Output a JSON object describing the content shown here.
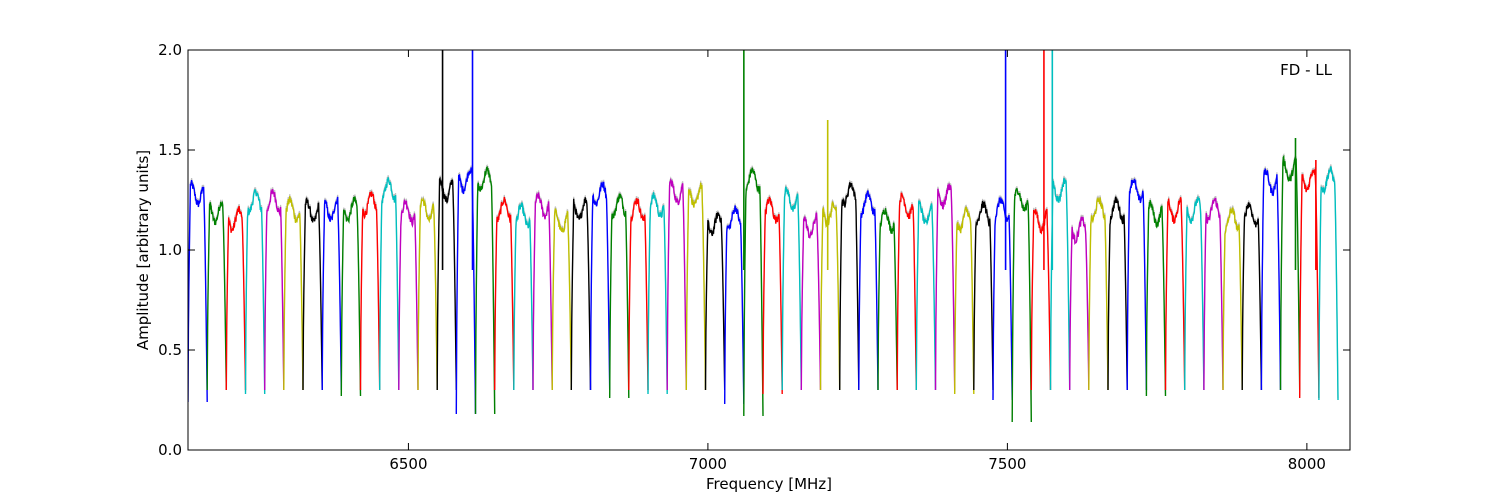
{
  "chart_data": {
    "type": "line",
    "annotation": "FD - LL",
    "xlabel": "Frequency [MHz]",
    "ylabel": "Amplitude [arbitrary units]",
    "xlim": [
      6132,
      8072
    ],
    "ylim": [
      0.0,
      2.0
    ],
    "x_ticks": [
      6500,
      7000,
      7500,
      8000
    ],
    "y_ticks": [
      0.0,
      0.5,
      1.0,
      1.5,
      2.0
    ],
    "x_tick_labels": [
      "6500",
      "7000",
      "7500",
      "8000"
    ],
    "y_tick_labels": [
      "0.0",
      "0.5",
      "1.0",
      "1.5",
      "2.0"
    ],
    "grid": false,
    "colors": [
      "#0000ff",
      "#008000",
      "#ff0000",
      "#00bfbf",
      "#bf00bf",
      "#bfbf00",
      "#000000"
    ],
    "background_color": "#c0c0c0",
    "channel_start_mhz": 6132,
    "channel_width_mhz": 32,
    "channel_count": 60,
    "channel_levels": [
      1.28,
      1.19,
      1.15,
      1.24,
      1.24,
      1.2,
      1.19,
      1.2,
      1.2,
      1.23,
      1.3,
      1.19,
      1.2,
      1.3,
      1.35,
      1.35,
      1.2,
      1.17,
      1.22,
      1.14,
      1.2,
      1.28,
      1.22,
      1.2,
      1.22,
      1.29,
      1.27,
      1.13,
      1.16,
      1.35,
      1.2,
      1.25,
      1.12,
      1.18,
      1.28,
      1.23,
      1.15,
      1.22,
      1.18,
      1.27,
      1.15,
      1.18,
      1.2,
      1.25,
      1.15,
      1.3,
      1.1,
      1.2,
      1.2,
      1.3,
      1.18,
      1.2,
      1.2,
      1.2,
      1.15,
      1.18,
      1.34,
      1.4,
      1.35,
      1.35
    ],
    "channel_minima": [
      0.24,
      0.3,
      0.3,
      0.28,
      0.3,
      0.3,
      0.3,
      0.3,
      0.27,
      0.3,
      0.3,
      0.3,
      0.3,
      0.3,
      0.18,
      0.18,
      0.3,
      0.3,
      0.3,
      0.3,
      0.3,
      0.3,
      0.26,
      0.3,
      0.28,
      0.3,
      0.3,
      0.3,
      0.23,
      0.17,
      0.28,
      0.3,
      0.3,
      0.3,
      0.3,
      0.3,
      0.3,
      0.3,
      0.3,
      0.3,
      0.28,
      0.3,
      0.25,
      0.14,
      0.3,
      0.3,
      0.3,
      0.3,
      0.3,
      0.3,
      0.27,
      0.3,
      0.3,
      0.3,
      0.3,
      0.3,
      0.3,
      0.3,
      0.26,
      0.25
    ],
    "spikes": [
      {
        "x": 6557,
        "y": 2.0
      },
      {
        "x": 6607,
        "y": 2.0
      },
      {
        "x": 7060,
        "y": 2.0
      },
      {
        "x": 7200,
        "y": 1.65
      },
      {
        "x": 7497,
        "y": 2.0
      },
      {
        "x": 7561,
        "y": 2.0
      },
      {
        "x": 7575,
        "y": 2.0
      },
      {
        "x": 7981,
        "y": 1.56
      },
      {
        "x": 8015,
        "y": 1.45
      }
    ]
  }
}
